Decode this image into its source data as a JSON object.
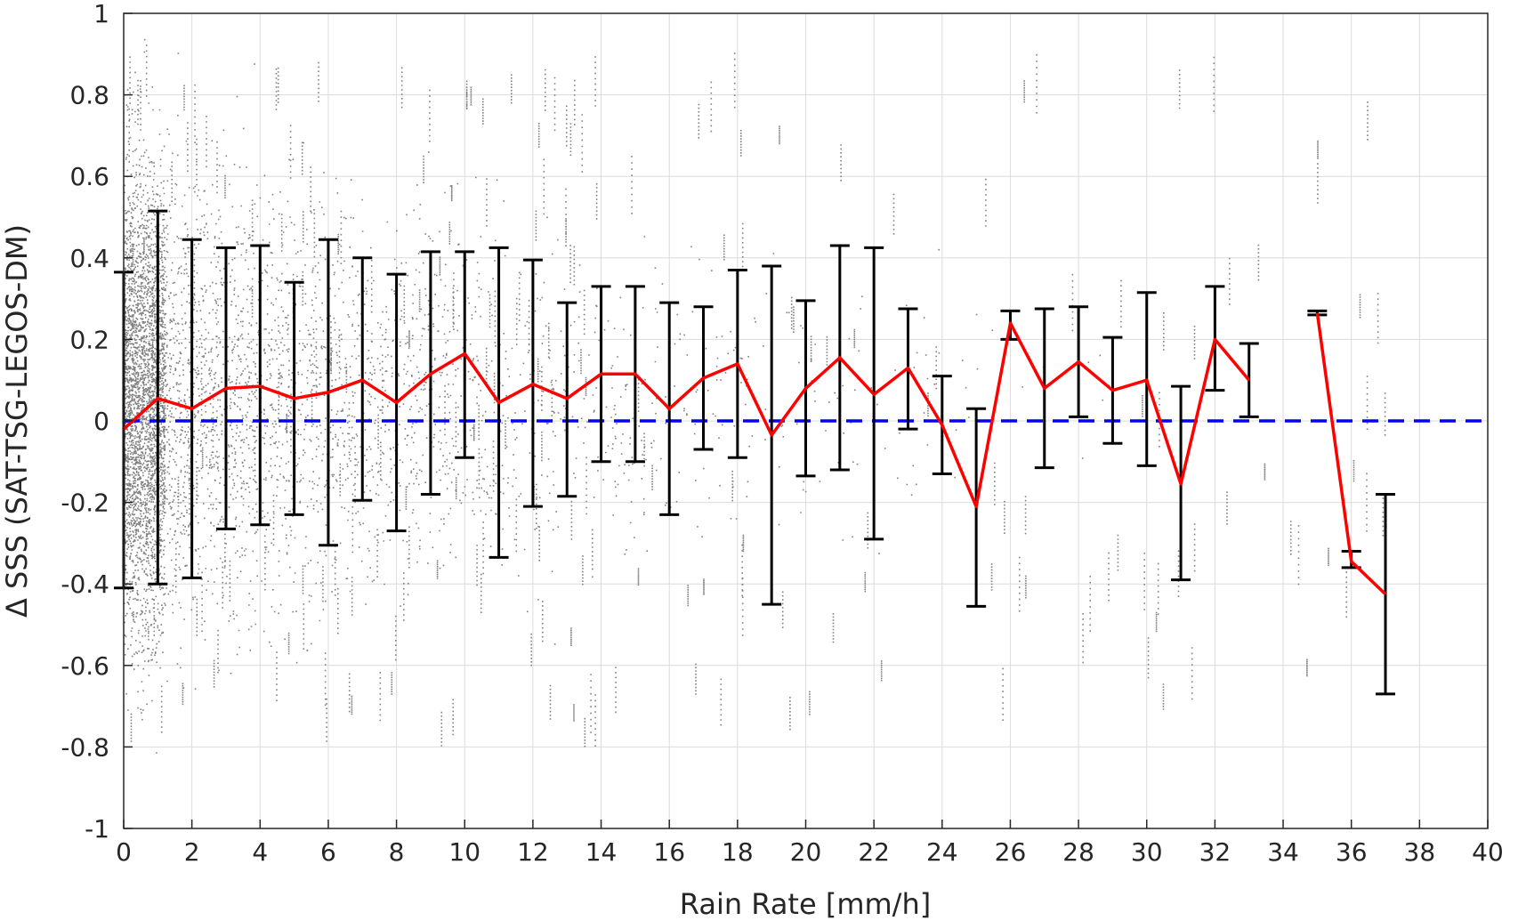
{
  "chart_data": {
    "type": "scatter",
    "xlabel": "Rain Rate [mm/h]",
    "ylabel": "Δ SSS (SAT-TSG-LEGOS-DM)",
    "xlim": [
      0,
      40
    ],
    "ylim": [
      -1,
      1
    ],
    "x_ticks": [
      "0",
      "2",
      "4",
      "6",
      "8",
      "10",
      "12",
      "14",
      "16",
      "18",
      "20",
      "22",
      "24",
      "26",
      "28",
      "30",
      "32",
      "34",
      "36",
      "38",
      "40"
    ],
    "y_ticks": [
      "-1",
      "-0.8",
      "-0.6",
      "-0.4",
      "-0.2",
      "0",
      "0.2",
      "0.4",
      "0.6",
      "0.8",
      "1"
    ],
    "grid": true,
    "reference_line": {
      "y": 0,
      "color": "#0000ff",
      "style": "dashed"
    },
    "scatter_color": "#808080",
    "scatter_note": "individual collocations, dense near 0 mm/h, spread decreasing with rain rate",
    "mean_color": "#ff0000",
    "errorbar_color": "#000000",
    "series": [
      {
        "segments": [
          [
            {
              "x": 0,
              "mean": -0.02,
              "lower": -0.41,
              "upper": 0.365
            },
            {
              "x": 1,
              "mean": 0.055,
              "lower": -0.4,
              "upper": 0.515
            },
            {
              "x": 2,
              "mean": 0.03,
              "lower": -0.385,
              "upper": 0.445
            },
            {
              "x": 3,
              "mean": 0.08,
              "lower": -0.265,
              "upper": 0.425
            },
            {
              "x": 4,
              "mean": 0.085,
              "lower": -0.255,
              "upper": 0.43
            },
            {
              "x": 5,
              "mean": 0.055,
              "lower": -0.23,
              "upper": 0.34
            },
            {
              "x": 6,
              "mean": 0.07,
              "lower": -0.305,
              "upper": 0.445
            },
            {
              "x": 7,
              "mean": 0.1,
              "lower": -0.195,
              "upper": 0.4
            },
            {
              "x": 8,
              "mean": 0.045,
              "lower": -0.27,
              "upper": 0.36
            },
            {
              "x": 9,
              "mean": 0.115,
              "lower": -0.18,
              "upper": 0.415
            },
            {
              "x": 10,
              "mean": 0.165,
              "lower": -0.09,
              "upper": 0.415
            },
            {
              "x": 11,
              "mean": 0.045,
              "lower": -0.335,
              "upper": 0.425
            },
            {
              "x": 12,
              "mean": 0.09,
              "lower": -0.21,
              "upper": 0.395
            },
            {
              "x": 13,
              "mean": 0.055,
              "lower": -0.185,
              "upper": 0.29
            },
            {
              "x": 14,
              "mean": 0.115,
              "lower": -0.1,
              "upper": 0.33
            },
            {
              "x": 15,
              "mean": 0.115,
              "lower": -0.1,
              "upper": 0.33
            },
            {
              "x": 16,
              "mean": 0.03,
              "lower": -0.23,
              "upper": 0.29
            },
            {
              "x": 17,
              "mean": 0.105,
              "lower": -0.07,
              "upper": 0.28
            },
            {
              "x": 18,
              "mean": 0.14,
              "lower": -0.09,
              "upper": 0.37
            },
            {
              "x": 19,
              "mean": -0.035,
              "lower": -0.45,
              "upper": 0.38
            },
            {
              "x": 20,
              "mean": 0.08,
              "lower": -0.135,
              "upper": 0.295
            },
            {
              "x": 21,
              "mean": 0.155,
              "lower": -0.12,
              "upper": 0.43
            },
            {
              "x": 22,
              "mean": 0.065,
              "lower": -0.29,
              "upper": 0.425
            },
            {
              "x": 23,
              "mean": 0.13,
              "lower": -0.02,
              "upper": 0.275
            },
            {
              "x": 24,
              "mean": -0.01,
              "lower": -0.13,
              "upper": 0.11
            },
            {
              "x": 25,
              "mean": -0.21,
              "lower": -0.455,
              "upper": 0.03
            },
            {
              "x": 26,
              "mean": 0.24,
              "lower": 0.2,
              "upper": 0.27
            },
            {
              "x": 27,
              "mean": 0.08,
              "lower": -0.115,
              "upper": 0.275
            },
            {
              "x": 28,
              "mean": 0.145,
              "lower": 0.01,
              "upper": 0.28
            },
            {
              "x": 29,
              "mean": 0.075,
              "lower": -0.055,
              "upper": 0.205
            },
            {
              "x": 30,
              "mean": 0.1,
              "lower": -0.11,
              "upper": 0.315
            },
            {
              "x": 31,
              "mean": -0.155,
              "lower": -0.39,
              "upper": 0.085
            },
            {
              "x": 32,
              "mean": 0.2,
              "lower": 0.075,
              "upper": 0.33
            },
            {
              "x": 33,
              "mean": 0.1,
              "lower": 0.01,
              "upper": 0.19
            }
          ],
          [
            {
              "x": 35,
              "mean": 0.265,
              "lower": 0.26,
              "upper": 0.27
            },
            {
              "x": 36,
              "mean": -0.345,
              "lower": -0.36,
              "upper": -0.32
            },
            {
              "x": 37,
              "mean": -0.425,
              "lower": -0.67,
              "upper": -0.18
            }
          ]
        ]
      }
    ]
  }
}
